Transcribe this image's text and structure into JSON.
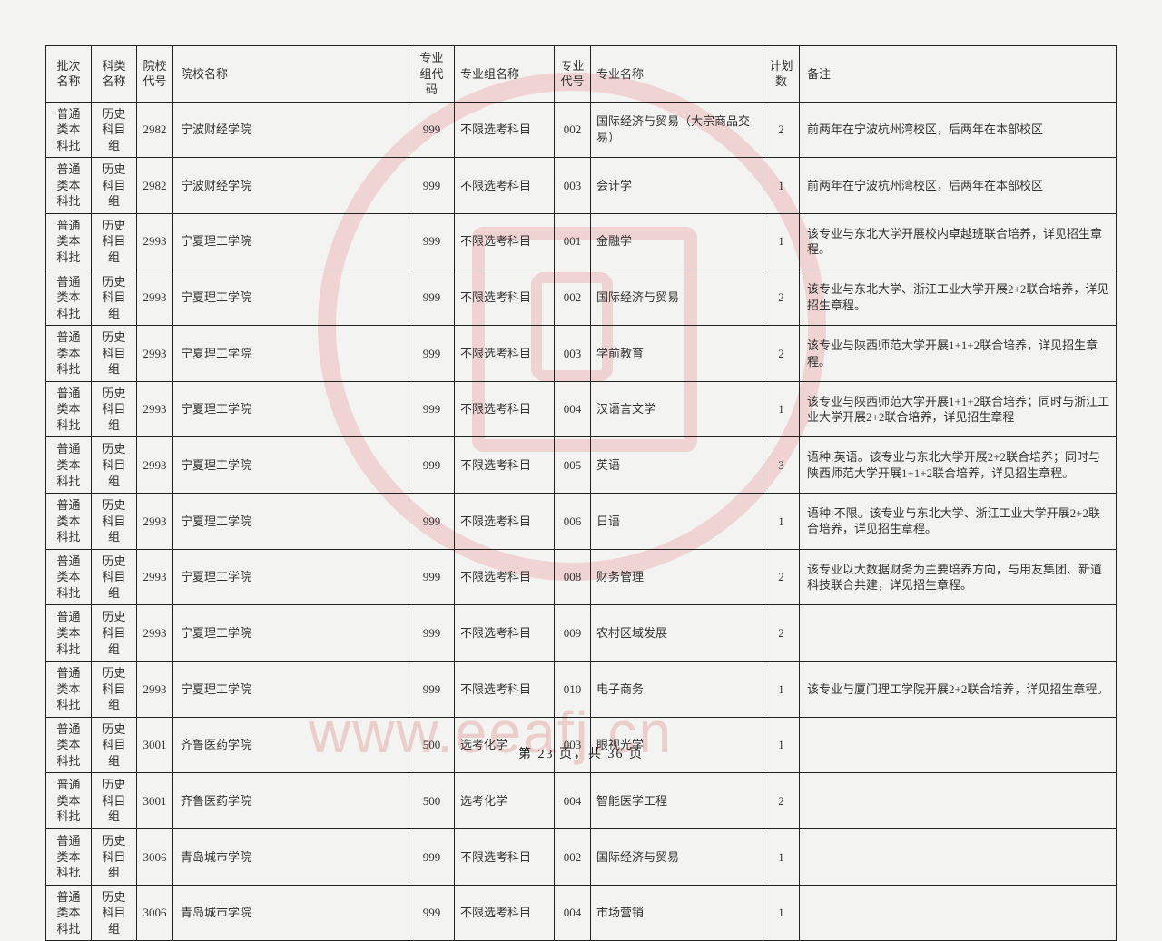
{
  "watermark_url": "www.eeafj.cn",
  "footer": "第 23 页，共 36 页",
  "columns": [
    "批次名称",
    "科类名称",
    "院校代号",
    "院校名称",
    "专业组代码",
    "专业组名称",
    "专业代号",
    "专业名称",
    "计划数",
    "备注"
  ],
  "rows": [
    [
      "普通类本科批",
      "历史科目组",
      "2982",
      "宁波财经学院",
      "999",
      "不限选考科目",
      "002",
      "国际经济与贸易（大宗商品交易）",
      "2",
      "前两年在宁波杭州湾校区，后两年在本部校区"
    ],
    [
      "普通类本科批",
      "历史科目组",
      "2982",
      "宁波财经学院",
      "999",
      "不限选考科目",
      "003",
      "会计学",
      "1",
      "前两年在宁波杭州湾校区，后两年在本部校区"
    ],
    [
      "普通类本科批",
      "历史科目组",
      "2993",
      "宁夏理工学院",
      "999",
      "不限选考科目",
      "001",
      "金融学",
      "1",
      "该专业与东北大学开展校内卓越班联合培养，详见招生章程。"
    ],
    [
      "普通类本科批",
      "历史科目组",
      "2993",
      "宁夏理工学院",
      "999",
      "不限选考科目",
      "002",
      "国际经济与贸易",
      "2",
      "该专业与东北大学、浙江工业大学开展2+2联合培养，详见招生章程。"
    ],
    [
      "普通类本科批",
      "历史科目组",
      "2993",
      "宁夏理工学院",
      "999",
      "不限选考科目",
      "003",
      "学前教育",
      "2",
      "该专业与陕西师范大学开展1+1+2联合培养，详见招生章程。"
    ],
    [
      "普通类本科批",
      "历史科目组",
      "2993",
      "宁夏理工学院",
      "999",
      "不限选考科目",
      "004",
      "汉语言文学",
      "1",
      "该专业与陕西师范大学开展1+1+2联合培养；同时与浙江工业大学开展2+2联合培养，详见招生章程"
    ],
    [
      "普通类本科批",
      "历史科目组",
      "2993",
      "宁夏理工学院",
      "999",
      "不限选考科目",
      "005",
      "英语",
      "3",
      "语种:英语。该专业与东北大学开展2+2联合培养；同时与陕西师范大学开展1+1+2联合培养，详见招生章程。"
    ],
    [
      "普通类本科批",
      "历史科目组",
      "2993",
      "宁夏理工学院",
      "999",
      "不限选考科目",
      "006",
      "日语",
      "1",
      "语种:不限。该专业与东北大学、浙江工业大学开展2+2联合培养，详见招生章程。"
    ],
    [
      "普通类本科批",
      "历史科目组",
      "2993",
      "宁夏理工学院",
      "999",
      "不限选考科目",
      "008",
      "财务管理",
      "2",
      "该专业以大数据财务为主要培养方向，与用友集团、新道科技联合共建，详见招生章程。"
    ],
    [
      "普通类本科批",
      "历史科目组",
      "2993",
      "宁夏理工学院",
      "999",
      "不限选考科目",
      "009",
      "农村区域发展",
      "2",
      ""
    ],
    [
      "普通类本科批",
      "历史科目组",
      "2993",
      "宁夏理工学院",
      "999",
      "不限选考科目",
      "010",
      "电子商务",
      "1",
      "该专业与厦门理工学院开展2+2联合培养，详见招生章程。"
    ],
    [
      "普通类本科批",
      "历史科目组",
      "3001",
      "齐鲁医药学院",
      "500",
      "选考化学",
      "003",
      "眼视光学",
      "1",
      ""
    ],
    [
      "普通类本科批",
      "历史科目组",
      "3001",
      "齐鲁医药学院",
      "500",
      "选考化学",
      "004",
      "智能医学工程",
      "2",
      ""
    ],
    [
      "普通类本科批",
      "历史科目组",
      "3006",
      "青岛城市学院",
      "999",
      "不限选考科目",
      "002",
      "国际经济与贸易",
      "1",
      ""
    ],
    [
      "普通类本科批",
      "历史科目组",
      "3006",
      "青岛城市学院",
      "999",
      "不限选考科目",
      "004",
      "市场营销",
      "1",
      ""
    ]
  ],
  "col_classes": [
    "c-batch",
    "c-subject",
    "c-scode",
    "c-sname",
    "c-gcode",
    "c-gname",
    "c-mcode",
    "c-mname",
    "c-plan",
    "c-note"
  ]
}
